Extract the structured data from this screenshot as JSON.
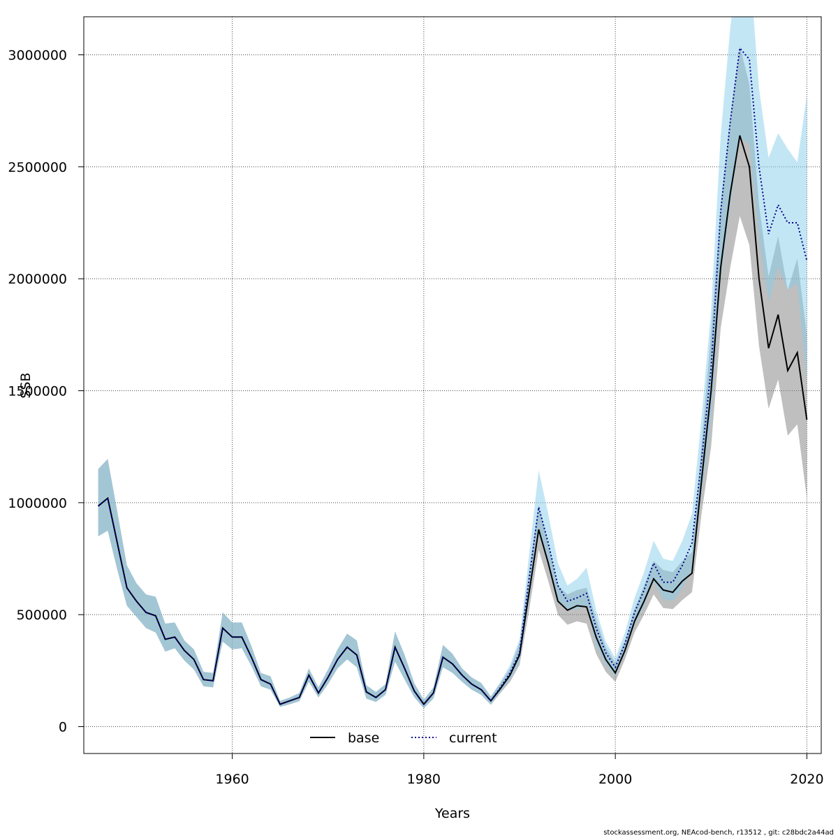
{
  "footer": "stockassessment.org, NEAcod-bench, r13512 , git: c28bdc2a44ad",
  "chart_data": {
    "type": "line",
    "title": "",
    "xlabel": "Years",
    "ylabel": "SSB",
    "xlim": [
      1944.5,
      2021.5
    ],
    "ylim": [
      -120000,
      3170000
    ],
    "xticks": [
      1960,
      1980,
      2000,
      2020
    ],
    "yticks": [
      0,
      500000,
      1000000,
      1500000,
      2000000,
      2500000,
      3000000
    ],
    "grid": true,
    "legend": "bottom-center",
    "colors": {
      "base_line": "#000000",
      "base_band": "rgba(128,128,128,0.5)",
      "current_line": "#00008b",
      "current_band": "rgba(135,206,235,0.5)"
    },
    "years": [
      1946,
      1947,
      1948,
      1949,
      1950,
      1951,
      1952,
      1953,
      1954,
      1955,
      1956,
      1957,
      1958,
      1959,
      1960,
      1961,
      1962,
      1963,
      1964,
      1965,
      1966,
      1967,
      1968,
      1969,
      1970,
      1971,
      1972,
      1973,
      1974,
      1975,
      1976,
      1977,
      1978,
      1979,
      1980,
      1981,
      1982,
      1983,
      1984,
      1985,
      1986,
      1987,
      1988,
      1989,
      1990,
      1991,
      1992,
      1993,
      1994,
      1995,
      1996,
      1997,
      1998,
      1999,
      2000,
      2001,
      2002,
      2003,
      2004,
      2005,
      2006,
      2007,
      2008,
      2009,
      2010,
      2011,
      2012,
      2013,
      2014,
      2015,
      2016,
      2017,
      2018,
      2019,
      2020
    ],
    "series": [
      {
        "name": "base",
        "style": "solid",
        "values": [
          985000,
          1020000,
          820000,
          620000,
          560000,
          510000,
          495000,
          390000,
          400000,
          340000,
          300000,
          210000,
          205000,
          440000,
          400000,
          400000,
          310000,
          210000,
          190000,
          100000,
          115000,
          130000,
          230000,
          150000,
          220000,
          300000,
          355000,
          320000,
          155000,
          130000,
          165000,
          355000,
          260000,
          160000,
          100000,
          150000,
          310000,
          280000,
          230000,
          190000,
          165000,
          115000,
          170000,
          230000,
          320000,
          600000,
          880000,
          730000,
          560000,
          520000,
          540000,
          535000,
          400000,
          300000,
          240000,
          340000,
          470000,
          560000,
          660000,
          610000,
          600000,
          650000,
          685000,
          1100000,
          1500000,
          2050000,
          2380000,
          2640000,
          2500000,
          2000000,
          1690000,
          1840000,
          1590000,
          1670000,
          1370000
        ]
      },
      {
        "name": "current",
        "style": "dotted",
        "values": [
          985000,
          1020000,
          820000,
          620000,
          560000,
          510000,
          495000,
          390000,
          400000,
          340000,
          300000,
          210000,
          205000,
          440000,
          400000,
          400000,
          310000,
          210000,
          190000,
          100000,
          115000,
          130000,
          230000,
          150000,
          220000,
          300000,
          355000,
          320000,
          155000,
          130000,
          165000,
          355000,
          260000,
          160000,
          100000,
          150000,
          310000,
          280000,
          230000,
          190000,
          165000,
          115000,
          175000,
          240000,
          330000,
          660000,
          980000,
          820000,
          630000,
          560000,
          575000,
          595000,
          440000,
          330000,
          265000,
          370000,
          510000,
          610000,
          730000,
          645000,
          645000,
          720000,
          820000,
          1190000,
          1600000,
          2300000,
          2700000,
          3030000,
          2980000,
          2500000,
          2200000,
          2330000,
          2250000,
          2250000,
          2080000
        ]
      }
    ],
    "bands": [
      {
        "series": "base",
        "lower": [
          850000,
          875000,
          700000,
          540000,
          490000,
          440000,
          420000,
          335000,
          350000,
          295000,
          255000,
          180000,
          175000,
          380000,
          345000,
          350000,
          270000,
          180000,
          165000,
          88000,
          100000,
          113000,
          200000,
          130000,
          190000,
          260000,
          300000,
          265000,
          125000,
          110000,
          142000,
          290000,
          210000,
          132000,
          82000,
          125000,
          265000,
          240000,
          200000,
          165000,
          142000,
          97000,
          150000,
          200000,
          275000,
          520000,
          790000,
          650000,
          500000,
          455000,
          470000,
          460000,
          325000,
          245000,
          200000,
          300000,
          420000,
          500000,
          590000,
          530000,
          525000,
          565000,
          600000,
          950000,
          1250000,
          1780000,
          2050000,
          2280000,
          2150000,
          1700000,
          1420000,
          1550000,
          1300000,
          1350000,
          1020000
        ]
      },
      {
        "series": "base",
        "upper": [
          1150000,
          1195000,
          960000,
          720000,
          640000,
          590000,
          580000,
          460000,
          465000,
          385000,
          345000,
          245000,
          240000,
          510000,
          465000,
          465000,
          360000,
          240000,
          225000,
          115000,
          130000,
          150000,
          260000,
          175000,
          255000,
          345000,
          415000,
          385000,
          185000,
          155000,
          190000,
          425000,
          320000,
          195000,
          120000,
          175000,
          365000,
          325000,
          260000,
          220000,
          195000,
          135000,
          195000,
          260000,
          375000,
          700000,
          990000,
          820000,
          630000,
          590000,
          610000,
          620000,
          480000,
          355000,
          285000,
          385000,
          525000,
          630000,
          740000,
          700000,
          690000,
          740000,
          780000,
          1260000,
          1760000,
          2330000,
          2720000,
          3040000,
          2870000,
          2330000,
          2010000,
          2190000,
          1950000,
          2090000,
          1750000
        ]
      },
      {
        "series": "current",
        "lower": [
          850000,
          875000,
          700000,
          540000,
          490000,
          440000,
          420000,
          335000,
          350000,
          295000,
          255000,
          180000,
          175000,
          380000,
          345000,
          350000,
          270000,
          180000,
          165000,
          88000,
          100000,
          113000,
          200000,
          130000,
          190000,
          260000,
          300000,
          265000,
          125000,
          110000,
          142000,
          290000,
          210000,
          132000,
          82000,
          125000,
          265000,
          240000,
          200000,
          165000,
          142000,
          97000,
          155000,
          210000,
          285000,
          570000,
          860000,
          720000,
          560000,
          520000,
          525000,
          540000,
          360000,
          275000,
          225000,
          330000,
          450000,
          540000,
          650000,
          570000,
          560000,
          620000,
          700000,
          1040000,
          1370000,
          2000000,
          2330000,
          2630000,
          2600000,
          2180000,
          1900000,
          2050000,
          1950000,
          1980000,
          1540000
        ]
      },
      {
        "series": "current",
        "upper": [
          1150000,
          1195000,
          960000,
          720000,
          640000,
          590000,
          580000,
          460000,
          465000,
          385000,
          345000,
          245000,
          240000,
          510000,
          465000,
          465000,
          360000,
          240000,
          225000,
          115000,
          130000,
          150000,
          260000,
          175000,
          255000,
          345000,
          415000,
          385000,
          185000,
          155000,
          190000,
          425000,
          320000,
          195000,
          120000,
          175000,
          365000,
          325000,
          260000,
          220000,
          195000,
          135000,
          200000,
          275000,
          390000,
          770000,
          1145000,
          950000,
          730000,
          630000,
          660000,
          710000,
          520000,
          380000,
          305000,
          420000,
          575000,
          690000,
          830000,
          750000,
          740000,
          830000,
          950000,
          1380000,
          1860000,
          2640000,
          3120000,
          3480000,
          3420000,
          2850000,
          2540000,
          2650000,
          2580000,
          2520000,
          2820000
        ]
      }
    ]
  }
}
